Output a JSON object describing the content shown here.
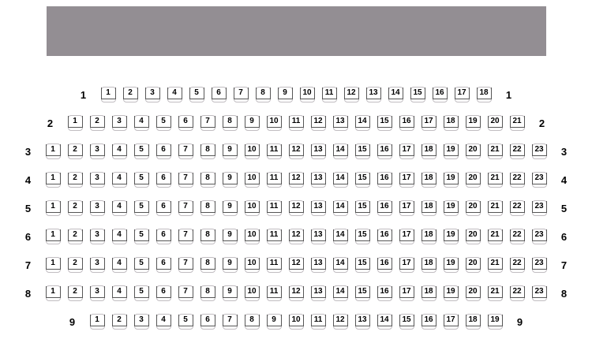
{
  "screen": {
    "color": "#938E93"
  },
  "colors": {
    "seat_outline": "#C1BDC1",
    "seat_frame": "#565656",
    "seat_number": "#000000",
    "row_label": "#000000"
  },
  "seat_map": {
    "rows": [
      {
        "label": "1",
        "seats": [
          "1",
          "2",
          "3",
          "4",
          "5",
          "6",
          "7",
          "8",
          "9",
          "10",
          "11",
          "12",
          "13",
          "14",
          "15",
          "16",
          "17",
          "18"
        ]
      },
      {
        "label": "2",
        "seats": [
          "1",
          "2",
          "3",
          "4",
          "5",
          "6",
          "7",
          "8",
          "9",
          "10",
          "11",
          "12",
          "13",
          "14",
          "15",
          "16",
          "17",
          "18",
          "19",
          "20",
          "21"
        ]
      },
      {
        "label": "3",
        "seats": [
          "1",
          "2",
          "3",
          "4",
          "5",
          "6",
          "7",
          "8",
          "9",
          "10",
          "11",
          "12",
          "13",
          "14",
          "15",
          "16",
          "17",
          "18",
          "19",
          "20",
          "21",
          "22",
          "23"
        ]
      },
      {
        "label": "4",
        "seats": [
          "1",
          "2",
          "3",
          "4",
          "5",
          "6",
          "7",
          "8",
          "9",
          "10",
          "11",
          "12",
          "13",
          "14",
          "15",
          "16",
          "17",
          "18",
          "19",
          "20",
          "21",
          "22",
          "23"
        ]
      },
      {
        "label": "5",
        "seats": [
          "1",
          "2",
          "3",
          "4",
          "5",
          "6",
          "7",
          "8",
          "9",
          "10",
          "11",
          "12",
          "13",
          "14",
          "15",
          "16",
          "17",
          "18",
          "19",
          "20",
          "21",
          "22",
          "23"
        ]
      },
      {
        "label": "6",
        "seats": [
          "1",
          "2",
          "3",
          "4",
          "5",
          "6",
          "7",
          "8",
          "9",
          "10",
          "11",
          "12",
          "13",
          "14",
          "15",
          "16",
          "17",
          "18",
          "19",
          "20",
          "21",
          "22",
          "23"
        ]
      },
      {
        "label": "7",
        "seats": [
          "1",
          "2",
          "3",
          "4",
          "5",
          "6",
          "7",
          "8",
          "9",
          "10",
          "11",
          "12",
          "13",
          "14",
          "15",
          "16",
          "17",
          "18",
          "19",
          "20",
          "21",
          "22",
          "23"
        ]
      },
      {
        "label": "8",
        "seats": [
          "1",
          "2",
          "3",
          "4",
          "5",
          "6",
          "7",
          "8",
          "9",
          "10",
          "11",
          "12",
          "13",
          "14",
          "15",
          "16",
          "17",
          "18",
          "19",
          "20",
          "21",
          "22",
          "23"
        ]
      },
      {
        "label": "9",
        "seats": [
          "1",
          "2",
          "3",
          "4",
          "5",
          "6",
          "7",
          "8",
          "9",
          "10",
          "11",
          "12",
          "13",
          "14",
          "15",
          "16",
          "17",
          "18",
          "19"
        ]
      }
    ]
  }
}
